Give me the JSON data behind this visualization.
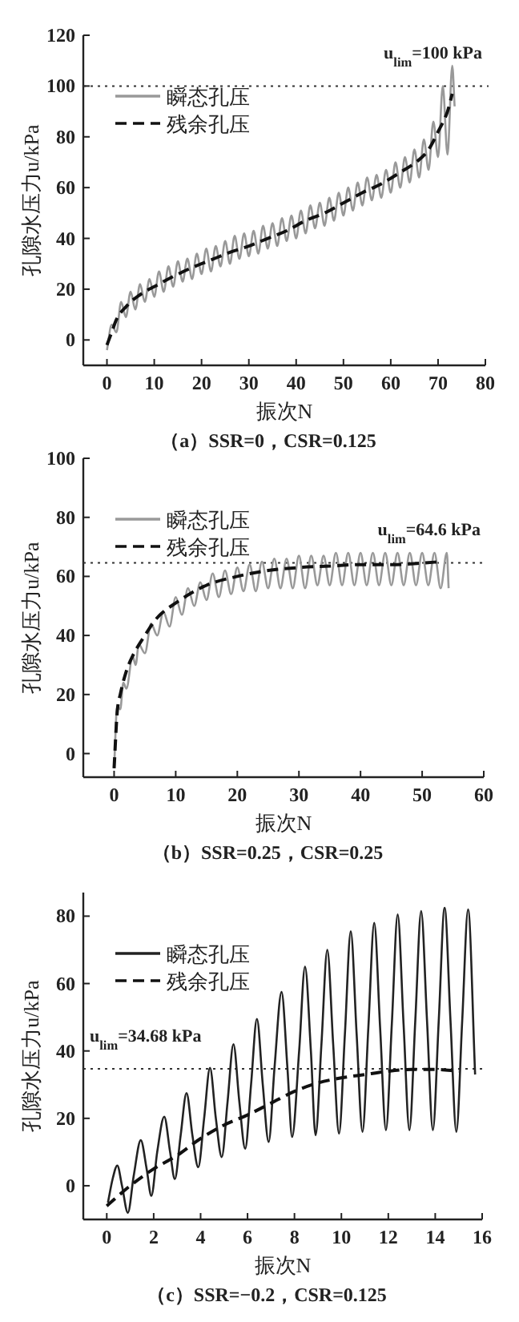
{
  "chart_data": [
    {
      "type": "line",
      "title": "（a）SSR=0，CSR=0.125",
      "xlabel": "振次N",
      "ylabel": "孔隙水压力u/kPa",
      "xlim": [
        -5,
        80
      ],
      "ylim": [
        -10,
        120
      ],
      "xticks": [
        0,
        10,
        20,
        30,
        40,
        50,
        60,
        70,
        80
      ],
      "yticks": [
        0,
        20,
        40,
        60,
        80,
        100,
        120
      ],
      "grid": false,
      "legend": "top left",
      "ref_lines": [
        {
          "axis": "y",
          "value": 100,
          "label": "u$_{lim}$=100 kPa",
          "line_style": "dotted",
          "color": "#333333"
        }
      ],
      "series": [
        {
          "name": "瞬态孔压",
          "color": "#999999",
          "line_style": "solid",
          "x": [
            0,
            1,
            2,
            3,
            4,
            5,
            6,
            7,
            8,
            9,
            10,
            11,
            12,
            13,
            14,
            15,
            16,
            17,
            18,
            19,
            20,
            21,
            22,
            23,
            24,
            25,
            26,
            27,
            28,
            29,
            30,
            31,
            32,
            33,
            34,
            35,
            36,
            37,
            38,
            39,
            40,
            41,
            42,
            43,
            44,
            45,
            46,
            47,
            48,
            49,
            50,
            51,
            52,
            53,
            54,
            55,
            56,
            57,
            58,
            59,
            60,
            61,
            62,
            63,
            64,
            65,
            66,
            67,
            68,
            69,
            70,
            71,
            72,
            73,
            73.5
          ],
          "values": [
            -4,
            6,
            3,
            15,
            9,
            19,
            12,
            22,
            15,
            24,
            17,
            27,
            19,
            29,
            21,
            31,
            23,
            32,
            24,
            34,
            26,
            36,
            27,
            37,
            29,
            39,
            30,
            41,
            32,
            42,
            33,
            43,
            34,
            45,
            36,
            46,
            37,
            48,
            39,
            49,
            40,
            51,
            42,
            53,
            44,
            54,
            45,
            56,
            47,
            58,
            49,
            60,
            51,
            62,
            53,
            64,
            55,
            65,
            56,
            67,
            58,
            70,
            60,
            72,
            62,
            75,
            64,
            79,
            67,
            86,
            72,
            100,
            73,
            108,
            92
          ]
        },
        {
          "name": "残余孔压",
          "color": "#111111",
          "line_style": "dashed",
          "x": [
            0,
            1,
            2,
            3,
            4,
            5,
            6,
            8,
            10,
            14,
            18,
            22,
            26,
            30,
            34,
            38,
            42,
            46,
            50,
            54,
            58,
            62,
            66,
            68,
            70,
            72,
            73
          ],
          "values": [
            -2,
            3,
            8,
            11,
            13,
            15,
            16.5,
            19,
            21,
            25,
            28.5,
            31.5,
            34.5,
            37,
            40,
            43,
            47,
            50,
            54,
            58,
            61.5,
            66,
            71,
            75,
            82,
            90,
            97
          ]
        }
      ]
    },
    {
      "type": "line",
      "title": "（b）SSR=0.25，CSR=0.25",
      "xlabel": "振次N",
      "ylabel": "孔隙水压力u/kPa",
      "xlim": [
        -5,
        60
      ],
      "ylim": [
        -8,
        100
      ],
      "xticks": [
        0,
        10,
        20,
        30,
        40,
        50,
        60
      ],
      "yticks": [
        0,
        20,
        40,
        60,
        80,
        100
      ],
      "grid": false,
      "legend": "top left",
      "ref_lines": [
        {
          "axis": "y",
          "value": 64.6,
          "label": "u$_{lim}$=64.6 kPa",
          "line_style": "dotted",
          "color": "#333333"
        }
      ],
      "series": [
        {
          "name": "瞬态孔压",
          "color": "#999999",
          "line_style": "solid",
          "x": [
            0,
            0.5,
            1,
            1.5,
            2,
            3,
            3.5,
            4,
            5,
            6,
            7,
            8,
            9,
            10,
            11,
            12,
            13,
            14,
            15,
            16,
            17,
            18,
            19,
            20,
            21,
            22,
            23,
            24,
            25,
            26,
            27,
            28,
            29,
            30,
            31,
            32,
            33,
            34,
            35,
            36,
            37,
            38,
            39,
            40,
            41,
            42,
            43,
            44,
            45,
            46,
            47,
            48,
            49,
            50,
            51,
            52,
            53,
            54,
            54.3
          ],
          "values": [
            -5,
            16,
            15,
            24,
            22,
            33,
            30,
            37,
            34,
            44,
            40,
            48,
            43,
            53,
            47,
            56,
            50,
            58,
            52,
            61,
            53,
            62,
            54,
            63,
            55,
            64,
            55,
            65,
            56,
            66,
            56,
            66,
            56,
            67,
            56,
            67,
            57,
            67,
            57,
            68,
            57,
            68,
            57,
            68,
            57,
            68,
            57,
            68,
            57,
            68,
            57,
            68,
            57,
            68,
            57,
            68,
            56,
            68,
            56
          ]
        },
        {
          "name": "残余孔压",
          "color": "#111111",
          "line_style": "dashed",
          "x": [
            0,
            0.5,
            1,
            2,
            3,
            5,
            7,
            10,
            15,
            20,
            25,
            30,
            35,
            40,
            45,
            50,
            53
          ],
          "values": [
            -5,
            14,
            20,
            28,
            33,
            40,
            46,
            51,
            57,
            60,
            62,
            63,
            63.5,
            64,
            64,
            64.5,
            65
          ]
        }
      ]
    },
    {
      "type": "line",
      "title": "（c）SSR=−0.2，CSR=0.125",
      "xlabel": "振次N",
      "ylabel": "孔隙水压力u/kPa",
      "xlim": [
        -1,
        16
      ],
      "ylim": [
        -10,
        87
      ],
      "xticks": [
        0,
        2,
        4,
        6,
        8,
        10,
        12,
        14,
        16
      ],
      "yticks": [
        0,
        20,
        40,
        60,
        80
      ],
      "grid": false,
      "legend": "top left",
      "ref_lines": [
        {
          "axis": "y",
          "value": 34.68,
          "label": "u$_{lim}$=34.68 kPa",
          "line_style": "dotted",
          "color": "#333333"
        }
      ],
      "series": [
        {
          "name": "瞬态孔压",
          "color": "#222222",
          "line_style": "solid",
          "x": [
            0.05,
            0.25,
            0.45,
            0.65,
            0.9,
            1.15,
            1.45,
            1.7,
            1.9,
            2.15,
            2.45,
            2.7,
            2.9,
            3.15,
            3.4,
            3.65,
            3.9,
            4.15,
            4.4,
            4.65,
            4.9,
            5.15,
            5.4,
            5.65,
            5.9,
            6.15,
            6.4,
            6.65,
            6.9,
            7.15,
            7.45,
            7.7,
            7.9,
            8.2,
            8.45,
            8.7,
            8.9,
            9.15,
            9.4,
            9.65,
            9.9,
            10.15,
            10.4,
            10.65,
            10.9,
            11.15,
            11.4,
            11.65,
            11.9,
            12.15,
            12.4,
            12.65,
            12.9,
            13.15,
            13.4,
            13.65,
            13.9,
            14.15,
            14.4,
            14.65,
            14.9,
            15.15,
            15.4,
            15.7
          ],
          "values": [
            -5,
            2,
            6,
            0,
            -8,
            3,
            13.5,
            5,
            -3,
            10,
            20.5,
            10,
            2,
            15,
            27.5,
            15,
            5.5,
            20,
            35,
            20,
            8.5,
            25,
            42,
            25,
            11,
            30,
            49.5,
            30,
            13,
            35,
            57.5,
            35,
            14.5,
            40,
            65,
            40,
            15,
            42,
            70,
            42,
            15.5,
            45,
            75.5,
            45,
            16,
            47,
            78,
            47,
            16.5,
            48,
            80.5,
            48,
            16.5,
            49,
            81.5,
            49,
            16.5,
            49,
            82.5,
            49,
            16,
            49,
            82,
            33
          ]
        },
        {
          "name": "残余孔压",
          "color": "#111111",
          "line_style": "dashed",
          "x": [
            0,
            1,
            2,
            3,
            4,
            5,
            6,
            7,
            8,
            9,
            10,
            11,
            12,
            13,
            14,
            15
          ],
          "values": [
            -6,
            0,
            5,
            9,
            14,
            18,
            21,
            24.5,
            28,
            30.5,
            32,
            33,
            34,
            34.5,
            34.5,
            34
          ]
        }
      ]
    }
  ]
}
